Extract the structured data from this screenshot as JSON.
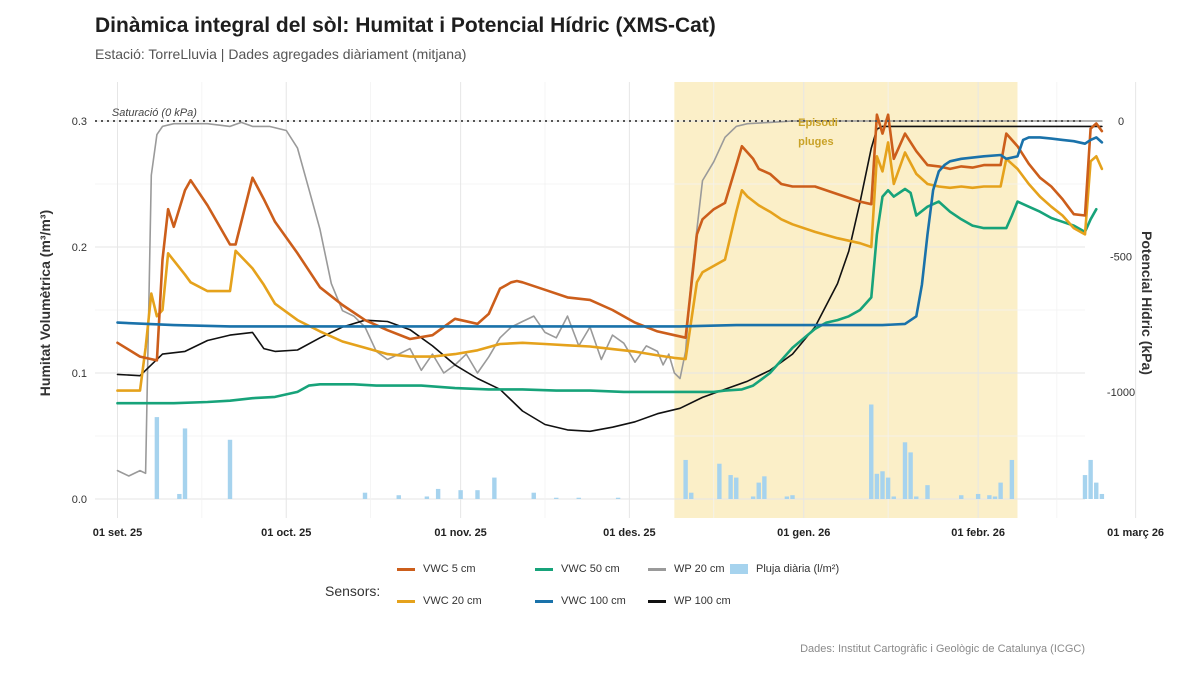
{
  "header": {
    "title": "Dinàmica integral del sòl: Humitat i Potencial Hídric (XMS-Cat)",
    "subtitle": "Estació: TorreLluvia | Dades agregades diàriament (mitjana)",
    "caption": "Dades: Institut Cartogràfic i Geològic de Catalunya (ICGC)"
  },
  "colors": {
    "vwc5": "#cc5e1b",
    "vwc20": "#e5a21c",
    "vwc50": "#17a37a",
    "vwc100": "#1a72aa",
    "wp20": "#9a9a9a",
    "wp100": "#111111",
    "rain": "#a6d3ee",
    "shade": "#fbefc8"
  },
  "legend": {
    "title": "Sensors:",
    "items": [
      {
        "key": "vwc5",
        "label": "VWC 5 cm",
        "kind": "line"
      },
      {
        "key": "vwc50",
        "label": "VWC 50 cm",
        "kind": "line"
      },
      {
        "key": "wp20",
        "label": "WP 20 cm",
        "kind": "line"
      },
      {
        "key": "rain",
        "label": "Pluja diària (l/m²)",
        "kind": "bar"
      },
      {
        "key": "vwc20",
        "label": "VWC 20 cm",
        "kind": "line"
      },
      {
        "key": "vwc100",
        "label": "VWC 100 cm",
        "kind": "line"
      },
      {
        "key": "wp100",
        "label": "WP 100 cm",
        "kind": "line"
      }
    ]
  },
  "chart_data": {
    "type": "line",
    "ylabel": "Humitat Volumètrica (m³/m³)",
    "y2label": "Potencial Hídric (kPa)",
    "ylim": [
      0,
      0.3
    ],
    "y2lim": [
      -1500,
      0
    ],
    "xlim": [
      -4,
      172
    ],
    "x_origin": "2025-09-01",
    "yticks": [
      0.0,
      0.1,
      0.2,
      0.3
    ],
    "ytick_labels": [
      "0.0",
      "0.1",
      "0.2",
      "0.3"
    ],
    "y2ticks": [
      0,
      -500,
      -1000
    ],
    "y2tick_labels": [
      "0",
      "-500",
      "-1000"
    ],
    "xticks": [
      0,
      30,
      61,
      91,
      122,
      153
    ],
    "xtick_labels": [
      "01 set. 25",
      "01 oct. 25",
      "01 nov. 25",
      "01 des. 25",
      "01 gen. 26",
      "01 febr. 26",
      "01 març 26"
    ],
    "xtick_days": [
      0,
      30,
      61,
      91,
      122,
      153,
      181
    ],
    "shaded_region": {
      "x": [
        99,
        160
      ],
      "label_line1": "Episodi",
      "label_line2": "pluges"
    },
    "reference_line": {
      "y2": 0,
      "label": "Saturació (0 kPa)"
    },
    "grid": true,
    "series": [
      {
        "key": "vwc5",
        "name": "VWC 5 cm",
        "axis": "y",
        "x": [
          0,
          4,
          7,
          8,
          9,
          10,
          12,
          13,
          16,
          20,
          21,
          24,
          26,
          28,
          32,
          36,
          40,
          44,
          48,
          52,
          56,
          60,
          62,
          64,
          66,
          68,
          70,
          71,
          72,
          76,
          80,
          84,
          88,
          92,
          96,
          99,
          101,
          103,
          104,
          106,
          108,
          110,
          111,
          112,
          113,
          114,
          116,
          118,
          120,
          124,
          128,
          132,
          134,
          135,
          136,
          137,
          138,
          140,
          142,
          144,
          146,
          148,
          150,
          152,
          154,
          157,
          158,
          160,
          162,
          164,
          166,
          168,
          169,
          170,
          172,
          173,
          174,
          175
        ],
        "y": [
          0.124,
          0.113,
          0.11,
          0.19,
          0.23,
          0.216,
          0.245,
          0.253,
          0.233,
          0.202,
          0.202,
          0.255,
          0.238,
          0.22,
          0.195,
          0.168,
          0.154,
          0.142,
          0.134,
          0.127,
          0.13,
          0.143,
          0.141,
          0.139,
          0.147,
          0.167,
          0.172,
          0.173,
          0.172,
          0.166,
          0.16,
          0.158,
          0.15,
          0.14,
          0.133,
          0.13,
          0.128,
          0.21,
          0.222,
          0.23,
          0.235,
          0.265,
          0.28,
          0.275,
          0.27,
          0.262,
          0.258,
          0.25,
          0.248,
          0.248,
          0.242,
          0.236,
          0.234,
          0.305,
          0.29,
          0.305,
          0.27,
          0.29,
          0.276,
          0.265,
          0.264,
          0.262,
          0.264,
          0.263,
          0.265,
          0.265,
          0.29,
          0.28,
          0.266,
          0.255,
          0.248,
          0.238,
          0.232,
          0.226,
          0.225,
          0.294,
          0.298,
          0.292
        ]
      },
      {
        "key": "vwc20",
        "name": "VWC 20 cm",
        "axis": "y",
        "x": [
          0,
          4,
          5,
          6,
          7,
          8,
          9,
          12,
          13,
          16,
          20,
          21,
          24,
          26,
          28,
          32,
          36,
          40,
          44,
          48,
          52,
          56,
          60,
          64,
          68,
          72,
          76,
          80,
          84,
          88,
          92,
          96,
          99,
          101,
          103,
          104,
          106,
          108,
          110,
          111,
          112,
          114,
          116,
          118,
          120,
          124,
          128,
          132,
          134,
          135,
          136,
          137,
          138,
          140,
          142,
          144,
          146,
          148,
          150,
          152,
          154,
          157,
          158,
          160,
          162,
          164,
          166,
          168,
          169,
          170,
          172,
          173,
          174,
          175
        ],
        "y": [
          0.086,
          0.086,
          0.12,
          0.163,
          0.145,
          0.15,
          0.195,
          0.178,
          0.172,
          0.165,
          0.165,
          0.197,
          0.183,
          0.17,
          0.155,
          0.142,
          0.133,
          0.125,
          0.12,
          0.115,
          0.113,
          0.113,
          0.115,
          0.118,
          0.123,
          0.124,
          0.123,
          0.122,
          0.121,
          0.119,
          0.117,
          0.114,
          0.112,
          0.111,
          0.172,
          0.18,
          0.185,
          0.19,
          0.228,
          0.245,
          0.24,
          0.233,
          0.228,
          0.222,
          0.218,
          0.212,
          0.207,
          0.203,
          0.2,
          0.272,
          0.26,
          0.283,
          0.25,
          0.275,
          0.258,
          0.25,
          0.248,
          0.247,
          0.248,
          0.247,
          0.248,
          0.248,
          0.27,
          0.262,
          0.25,
          0.24,
          0.232,
          0.225,
          0.22,
          0.215,
          0.21,
          0.268,
          0.272,
          0.262
        ]
      },
      {
        "key": "vwc50",
        "name": "VWC 50 cm",
        "axis": "y",
        "x": [
          0,
          6,
          10,
          16,
          20,
          24,
          28,
          32,
          34,
          36,
          38,
          42,
          46,
          50,
          54,
          60,
          66,
          72,
          78,
          84,
          90,
          96,
          102,
          106,
          108,
          111,
          113,
          116,
          120,
          124,
          126,
          128,
          130,
          132,
          134,
          135,
          136,
          137,
          138,
          140,
          141,
          142,
          144,
          146,
          148,
          150,
          152,
          154,
          156,
          158,
          159,
          160,
          162,
          164,
          166,
          168,
          170,
          172,
          173,
          174
        ],
        "y": [
          0.076,
          0.076,
          0.076,
          0.077,
          0.078,
          0.08,
          0.081,
          0.085,
          0.09,
          0.091,
          0.091,
          0.091,
          0.09,
          0.09,
          0.09,
          0.088,
          0.087,
          0.087,
          0.086,
          0.086,
          0.085,
          0.085,
          0.085,
          0.085,
          0.086,
          0.087,
          0.09,
          0.1,
          0.12,
          0.135,
          0.14,
          0.142,
          0.145,
          0.15,
          0.16,
          0.21,
          0.24,
          0.245,
          0.24,
          0.246,
          0.243,
          0.225,
          0.232,
          0.236,
          0.228,
          0.222,
          0.217,
          0.215,
          0.215,
          0.215,
          0.225,
          0.236,
          0.232,
          0.228,
          0.223,
          0.22,
          0.217,
          0.212,
          0.222,
          0.23
        ]
      },
      {
        "key": "vwc100",
        "name": "VWC 100 cm",
        "axis": "y",
        "x": [
          0,
          10,
          20,
          30,
          40,
          50,
          60,
          70,
          80,
          90,
          100,
          110,
          120,
          130,
          136,
          140,
          142,
          143,
          144,
          145,
          146,
          147,
          148,
          150,
          154,
          157,
          158,
          160,
          161,
          162,
          164,
          166,
          168,
          170,
          172,
          173,
          174,
          175
        ],
        "y": [
          0.14,
          0.138,
          0.137,
          0.137,
          0.137,
          0.137,
          0.137,
          0.137,
          0.137,
          0.137,
          0.137,
          0.138,
          0.138,
          0.138,
          0.138,
          0.139,
          0.145,
          0.17,
          0.21,
          0.245,
          0.26,
          0.265,
          0.268,
          0.27,
          0.272,
          0.273,
          0.27,
          0.272,
          0.285,
          0.287,
          0.287,
          0.286,
          0.285,
          0.284,
          0.282,
          0.285,
          0.287,
          0.283
        ]
      },
      {
        "key": "wp20",
        "name": "WP 20 cm",
        "axis": "y2",
        "x": [
          0,
          2,
          4,
          5,
          6,
          7,
          8,
          10,
          16,
          20,
          22,
          24,
          27,
          30,
          32,
          34,
          36,
          38,
          40,
          42,
          44,
          46,
          48,
          50,
          52,
          54,
          56,
          58,
          60,
          62,
          64,
          66,
          68,
          70,
          72,
          74,
          76,
          78,
          80,
          82,
          84,
          86,
          88,
          90,
          92,
          94,
          96,
          97,
          98,
          99,
          100,
          101,
          102,
          103,
          104,
          106,
          108,
          110,
          112,
          116,
          120,
          130,
          140,
          150,
          160,
          170,
          175
        ],
        "y": [
          -1290,
          -1310,
          -1290,
          -1300,
          -200,
          -50,
          -20,
          -10,
          -10,
          -20,
          -5,
          -20,
          -20,
          -35,
          -100,
          -250,
          -400,
          -600,
          -700,
          -720,
          -760,
          -850,
          -880,
          -860,
          -840,
          -920,
          -860,
          -930,
          -900,
          -860,
          -930,
          -870,
          -800,
          -760,
          -740,
          -720,
          -780,
          -800,
          -720,
          -830,
          -760,
          -880,
          -790,
          -820,
          -890,
          -830,
          -850,
          -900,
          -860,
          -930,
          -950,
          -850,
          -580,
          -400,
          -220,
          -150,
          -60,
          -20,
          -10,
          -5,
          0,
          0,
          0,
          0,
          0,
          0,
          0
        ]
      },
      {
        "key": "wp100",
        "name": "WP 100 cm",
        "axis": "y2",
        "x": [
          0,
          4,
          8,
          12,
          16,
          20,
          24,
          26,
          28,
          32,
          36,
          40,
          44,
          48,
          52,
          56,
          60,
          64,
          68,
          72,
          76,
          80,
          84,
          88,
          92,
          96,
          100,
          104,
          108,
          112,
          116,
          120,
          124,
          128,
          130,
          132,
          134,
          135,
          136,
          138,
          140,
          150,
          160,
          170,
          175
        ],
        "y": [
          -935,
          -940,
          -860,
          -850,
          -810,
          -790,
          -780,
          -840,
          -850,
          -845,
          -800,
          -760,
          -735,
          -740,
          -770,
          -830,
          -900,
          -950,
          -990,
          -1070,
          -1120,
          -1140,
          -1145,
          -1130,
          -1110,
          -1080,
          -1060,
          -1020,
          -990,
          -960,
          -920,
          -860,
          -760,
          -600,
          -480,
          -300,
          -100,
          -30,
          -20,
          -20,
          -20,
          -20,
          -20,
          -20,
          -20
        ]
      },
      {
        "key": "rain",
        "name": "Pluja diària (l/m²)",
        "axis": "y",
        "kind": "bar",
        "x": [
          7,
          11,
          12,
          20,
          44,
          50,
          55,
          57,
          61,
          64,
          67,
          74,
          78,
          82,
          89,
          101,
          102,
          107,
          109,
          110,
          113,
          114,
          115,
          119,
          120,
          134,
          135,
          136,
          137,
          138,
          140,
          141,
          142,
          144,
          150,
          153,
          155,
          156,
          157,
          159,
          172,
          173,
          174,
          175
        ],
        "y": [
          0.065,
          0.004,
          0.056,
          0.047,
          0.005,
          0.003,
          0.002,
          0.008,
          0.007,
          0.007,
          0.017,
          0.005,
          0.001,
          0.001,
          0.001,
          0.031,
          0.005,
          0.028,
          0.019,
          0.017,
          0.002,
          0.013,
          0.018,
          0.002,
          0.003,
          0.075,
          0.02,
          0.022,
          0.017,
          0.002,
          0.045,
          0.037,
          0.002,
          0.011,
          0.003,
          0.004,
          0.003,
          0.002,
          0.013,
          0.031,
          0.019,
          0.031,
          0.013,
          0.004
        ]
      }
    ]
  }
}
